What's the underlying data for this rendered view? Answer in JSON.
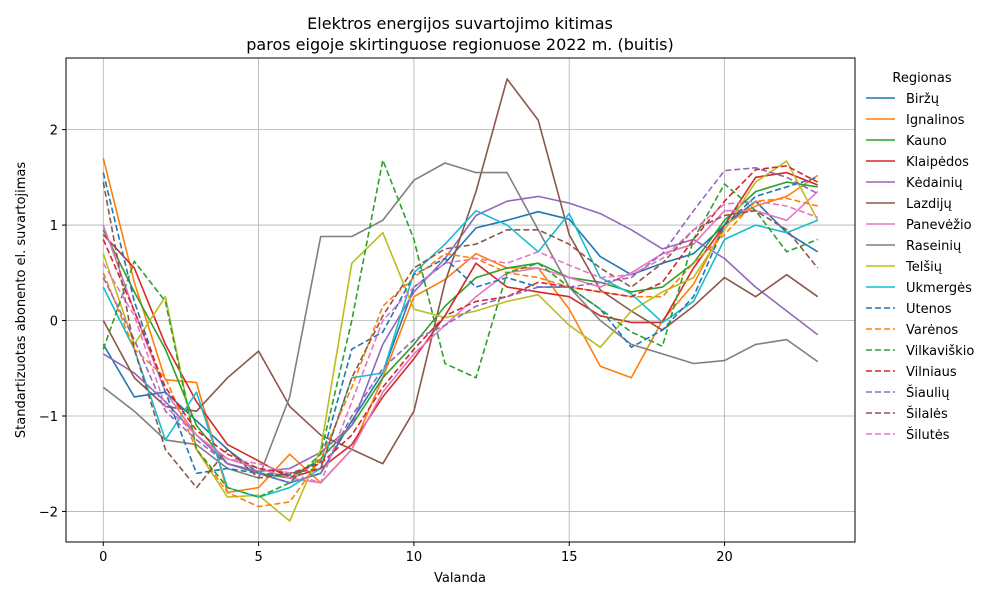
{
  "chart_data": {
    "type": "line",
    "title_line1": "Elektros energijos suvartojimo kitimas",
    "title_line2": "paros eigoje skirtinguose regionuose 2022 m. (buitis)",
    "xlabel": "Valanda",
    "ylabel": "Standartizuotas abonento el. suvartojimas",
    "xlim": [
      -1.2,
      24.2
    ],
    "ylim": [
      -2.32,
      2.75
    ],
    "xticks": [
      0,
      5,
      10,
      15,
      20
    ],
    "yticks": [
      -2,
      -1,
      0,
      1,
      2
    ],
    "grid": true,
    "legend_title": "Regionas",
    "legend_position": "right-outside",
    "x": [
      0,
      1,
      2,
      3,
      4,
      5,
      6,
      7,
      8,
      9,
      10,
      11,
      12,
      13,
      14,
      15,
      16,
      17,
      18,
      19,
      20,
      21,
      22,
      23
    ],
    "series": [
      {
        "name": "Biržų",
        "color": "#1f77b4",
        "dash": "solid",
        "values": [
          -0.25,
          -0.8,
          -0.75,
          -1.05,
          -1.35,
          -1.6,
          -1.7,
          -1.6,
          -1.05,
          -0.55,
          0.35,
          0.6,
          0.97,
          1.05,
          1.14,
          1.06,
          0.67,
          0.48,
          0.6,
          0.7,
          1.0,
          1.25,
          0.92,
          0.72
        ]
      },
      {
        "name": "Ignalinos",
        "color": "#ff7f0e",
        "dash": "solid",
        "values": [
          1.7,
          0.4,
          -0.62,
          -0.65,
          -1.8,
          -1.75,
          -1.4,
          -1.7,
          -1.35,
          -0.6,
          0.25,
          0.43,
          0.7,
          0.55,
          0.55,
          0.12,
          -0.48,
          -0.6,
          0.0,
          0.38,
          1.0,
          1.2,
          1.3,
          1.52
        ]
      },
      {
        "name": "Kauno",
        "color": "#2ca02c",
        "dash": "solid",
        "values": [
          0.95,
          0.3,
          -0.3,
          -1.1,
          -1.5,
          -1.6,
          -1.65,
          -1.45,
          -1.1,
          -0.6,
          -0.25,
          0.15,
          0.45,
          0.55,
          0.6,
          0.45,
          0.4,
          0.3,
          0.35,
          0.6,
          1.05,
          1.35,
          1.45,
          1.4
        ]
      },
      {
        "name": "Klaipėdos",
        "color": "#d62728",
        "dash": "solid",
        "values": [
          0.9,
          0.55,
          -0.25,
          -0.85,
          -1.3,
          -1.47,
          -1.65,
          -1.55,
          -1.3,
          -0.8,
          -0.4,
          0.05,
          0.6,
          0.35,
          0.3,
          0.25,
          0.05,
          -0.02,
          -0.02,
          0.55,
          1.0,
          1.5,
          1.55,
          1.42
        ]
      },
      {
        "name": "Kėdainių",
        "color": "#9467bd",
        "dash": "solid",
        "values": [
          -0.35,
          -0.55,
          -0.85,
          -1.2,
          -1.5,
          -1.58,
          -1.55,
          -1.38,
          -1.1,
          -0.25,
          0.3,
          0.65,
          1.1,
          1.25,
          1.3,
          1.23,
          1.12,
          0.95,
          0.75,
          0.85,
          0.65,
          0.35,
          0.1,
          -0.15
        ]
      },
      {
        "name": "Lazdijų",
        "color": "#8c564b",
        "dash": "solid",
        "values": [
          0.0,
          -0.6,
          -0.9,
          -0.95,
          -0.6,
          -0.32,
          -0.9,
          -1.2,
          -1.35,
          -1.5,
          -0.95,
          0.4,
          1.35,
          2.53,
          2.1,
          0.9,
          0.32,
          0.1,
          -0.1,
          0.15,
          0.45,
          0.25,
          0.48,
          0.25
        ]
      },
      {
        "name": "Panevėžio",
        "color": "#e377c2",
        "dash": "solid",
        "values": [
          1.0,
          0.1,
          -0.75,
          -1.2,
          -1.45,
          -1.55,
          -1.65,
          -1.7,
          -1.35,
          -0.75,
          -0.35,
          -0.05,
          0.25,
          0.5,
          0.55,
          0.45,
          0.35,
          0.5,
          0.7,
          0.8,
          1.15,
          1.15,
          1.05,
          1.35
        ]
      },
      {
        "name": "Raseinių",
        "color": "#7f7f7f",
        "dash": "solid",
        "values": [
          -0.7,
          -0.95,
          -1.25,
          -1.3,
          -1.55,
          -1.65,
          -0.8,
          0.88,
          0.88,
          1.05,
          1.47,
          1.65,
          1.55,
          1.55,
          0.95,
          0.35,
          0.0,
          -0.25,
          -0.35,
          -0.45,
          -0.42,
          -0.25,
          -0.2,
          -0.43
        ]
      },
      {
        "name": "Telšių",
        "color": "#bcbd22",
        "dash": "solid",
        "values": [
          0.7,
          -0.25,
          0.25,
          -1.35,
          -1.85,
          -1.83,
          -2.1,
          -1.35,
          0.6,
          0.92,
          0.12,
          0.03,
          0.1,
          0.2,
          0.27,
          -0.05,
          -0.28,
          0.1,
          0.3,
          0.45,
          0.95,
          1.45,
          1.67,
          1.05
        ]
      },
      {
        "name": "Ukmergės",
        "color": "#17becf",
        "dash": "solid",
        "values": [
          0.35,
          -0.3,
          -1.25,
          -0.75,
          -1.75,
          -1.85,
          -1.75,
          -1.55,
          -0.6,
          -0.55,
          0.5,
          0.8,
          1.15,
          1.0,
          0.72,
          1.12,
          0.45,
          0.28,
          -0.02,
          0.2,
          0.85,
          1.0,
          0.92,
          1.05
        ]
      },
      {
        "name": "Utenos",
        "color": "#1f77b4",
        "dash": "dashed",
        "values": [
          1.55,
          0.2,
          -0.75,
          -1.6,
          -1.55,
          -1.6,
          -1.62,
          -1.48,
          -0.3,
          -0.12,
          0.48,
          0.65,
          0.35,
          0.45,
          0.35,
          0.35,
          0.12,
          -0.28,
          -0.1,
          0.25,
          1.0,
          1.3,
          1.4,
          1.5
        ]
      },
      {
        "name": "Varėnos",
        "color": "#ff7f0e",
        "dash": "dashed",
        "values": [
          0.5,
          -0.3,
          -0.6,
          -1.35,
          -1.8,
          -1.95,
          -1.9,
          -1.45,
          -0.7,
          0.15,
          0.45,
          0.7,
          0.65,
          0.5,
          0.45,
          0.35,
          0.3,
          0.25,
          0.25,
          0.6,
          0.9,
          1.25,
          1.28,
          1.2
        ]
      },
      {
        "name": "Vilkaviškio",
        "color": "#2ca02c",
        "dash": "dashed",
        "values": [
          -0.3,
          0.62,
          0.2,
          -1.35,
          -1.75,
          -1.85,
          -1.7,
          -1.4,
          0.0,
          1.68,
          0.85,
          -0.45,
          -0.6,
          0.5,
          0.6,
          0.35,
          0.12,
          -0.12,
          -0.27,
          0.85,
          1.43,
          1.15,
          0.72,
          0.85
        ]
      },
      {
        "name": "Vilniaus",
        "color": "#d62728",
        "dash": "dashed",
        "values": [
          0.85,
          0.1,
          -0.7,
          -1.15,
          -1.4,
          -1.55,
          -1.6,
          -1.5,
          -1.2,
          -0.7,
          -0.3,
          0.05,
          0.2,
          0.25,
          0.4,
          0.35,
          0.3,
          0.25,
          0.4,
          0.85,
          1.25,
          1.58,
          1.62,
          1.45
        ]
      },
      {
        "name": "Šiaulių",
        "color": "#9467bd",
        "dash": "dashed",
        "values": [
          0.45,
          -0.2,
          -0.95,
          -1.25,
          -1.5,
          -1.6,
          -1.7,
          -1.6,
          -1.0,
          -0.5,
          -0.2,
          -0.05,
          0.15,
          0.25,
          0.35,
          0.35,
          0.4,
          0.45,
          0.7,
          1.15,
          1.57,
          1.6,
          1.5,
          1.33
        ]
      },
      {
        "name": "Šilalės",
        "color": "#8c564b",
        "dash": "dashed",
        "values": [
          1.45,
          -0.3,
          -1.35,
          -1.75,
          -1.35,
          -1.65,
          -1.6,
          -1.55,
          -0.6,
          0.05,
          0.55,
          0.75,
          0.8,
          0.95,
          0.95,
          0.8,
          0.55,
          0.35,
          0.6,
          0.95,
          1.1,
          1.15,
          0.95,
          0.55
        ]
      },
      {
        "name": "Šilutės",
        "color": "#e377c2",
        "dash": "dashed",
        "values": [
          0.6,
          0.05,
          -0.9,
          -1.2,
          -1.45,
          -1.5,
          -1.6,
          -1.7,
          -0.85,
          0.0,
          0.35,
          0.6,
          0.65,
          0.6,
          0.72,
          0.58,
          0.45,
          0.48,
          0.65,
          0.95,
          1.22,
          1.25,
          1.2,
          1.08
        ]
      }
    ]
  }
}
